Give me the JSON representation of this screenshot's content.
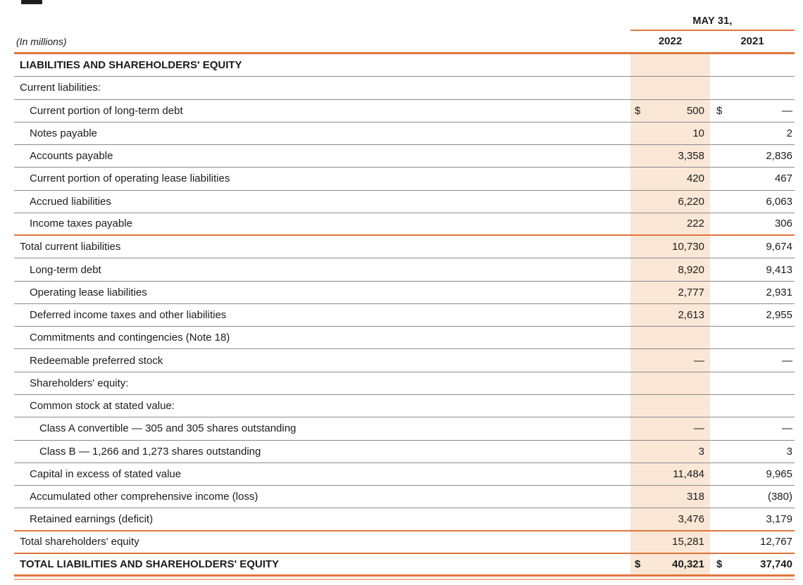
{
  "header": {
    "date_label": "MAY 31,",
    "col_2022": "2022",
    "col_2021": "2021",
    "units_label": "(In millions)"
  },
  "symbols": {
    "dollar": "$",
    "empty_dash": "—"
  },
  "colors": {
    "accent_orange": "#e0763b",
    "accent_orange_light": "#eeb08a",
    "column_highlight": "#fae7d6",
    "row_line_gray": "#8b8b8b",
    "text": "#1c1c1c"
  },
  "rows": [
    {
      "label": "LIABILITIES AND SHAREHOLDERS' EQUITY",
      "indent": 0,
      "bold": true,
      "dollar": false,
      "v2022": "",
      "v2021": "",
      "underline": "gray"
    },
    {
      "label": "Current liabilities:",
      "indent": 0,
      "bold": false,
      "dollar": false,
      "v2022": "",
      "v2021": "",
      "underline": "gray"
    },
    {
      "label": "Current portion of long-term debt",
      "indent": 1,
      "bold": false,
      "dollar": true,
      "v2022": "500",
      "v2021": "—",
      "underline": "gray"
    },
    {
      "label": "Notes payable",
      "indent": 1,
      "bold": false,
      "dollar": false,
      "v2022": "10",
      "v2021": "2",
      "underline": "gray"
    },
    {
      "label": "Accounts payable",
      "indent": 1,
      "bold": false,
      "dollar": false,
      "v2022": "3,358",
      "v2021": "2,836",
      "underline": "gray"
    },
    {
      "label": "Current portion of operating lease liabilities",
      "indent": 1,
      "bold": false,
      "dollar": false,
      "v2022": "420",
      "v2021": "467",
      "underline": "gray"
    },
    {
      "label": "Accrued liabilities",
      "indent": 1,
      "bold": false,
      "dollar": false,
      "v2022": "6,220",
      "v2021": "6,063",
      "underline": "gray"
    },
    {
      "label": "Income taxes payable",
      "indent": 1,
      "bold": false,
      "dollar": false,
      "v2022": "222",
      "v2021": "306",
      "underline": "orange"
    },
    {
      "label": "Total current liabilities",
      "indent": 0,
      "bold": false,
      "dollar": false,
      "v2022": "10,730",
      "v2021": "9,674",
      "underline": "gray"
    },
    {
      "label": "Long-term debt",
      "indent": 1,
      "bold": false,
      "dollar": false,
      "v2022": "8,920",
      "v2021": "9,413",
      "underline": "gray"
    },
    {
      "label": "Operating lease liabilities",
      "indent": 1,
      "bold": false,
      "dollar": false,
      "v2022": "2,777",
      "v2021": "2,931",
      "underline": "gray"
    },
    {
      "label": "Deferred income taxes and other liabilities",
      "indent": 1,
      "bold": false,
      "dollar": false,
      "v2022": "2,613",
      "v2021": "2,955",
      "underline": "gray"
    },
    {
      "label": "Commitments and contingencies (Note 18)",
      "indent": 1,
      "bold": false,
      "dollar": false,
      "v2022": "",
      "v2021": "",
      "underline": "gray"
    },
    {
      "label": "Redeemable preferred stock",
      "indent": 1,
      "bold": false,
      "dollar": false,
      "v2022": "—",
      "v2021": "—",
      "underline": "gray"
    },
    {
      "label": "Shareholders' equity:",
      "indent": 1,
      "bold": false,
      "dollar": false,
      "v2022": "",
      "v2021": "",
      "underline": "gray"
    },
    {
      "label": "Common stock at stated value:",
      "indent": 1,
      "bold": false,
      "dollar": false,
      "v2022": "",
      "v2021": "",
      "underline": "gray"
    },
    {
      "label": "Class A convertible — 305 and 305 shares outstanding",
      "indent": 2,
      "bold": false,
      "dollar": false,
      "v2022": "—",
      "v2021": "—",
      "underline": "gray"
    },
    {
      "label": "Class B — 1,266 and 1,273 shares outstanding",
      "indent": 2,
      "bold": false,
      "dollar": false,
      "v2022": "3",
      "v2021": "3",
      "underline": "gray"
    },
    {
      "label": "Capital in excess of stated value",
      "indent": 1,
      "bold": false,
      "dollar": false,
      "v2022": "11,484",
      "v2021": "9,965",
      "underline": "gray"
    },
    {
      "label": "Accumulated other comprehensive income (loss)",
      "indent": 1,
      "bold": false,
      "dollar": false,
      "v2022": "318",
      "v2021": "(380)",
      "underline": "gray"
    },
    {
      "label": "Retained earnings (deficit)",
      "indent": 1,
      "bold": false,
      "dollar": false,
      "v2022": "3,476",
      "v2021": "3,179",
      "underline": "orange"
    },
    {
      "label": "Total shareholders' equity",
      "indent": 0,
      "bold": false,
      "dollar": false,
      "v2022": "15,281",
      "v2021": "12,767",
      "underline": "orange"
    },
    {
      "label": "TOTAL LIABILITIES AND SHAREHOLDERS' EQUITY",
      "indent": 0,
      "bold": true,
      "dollar": true,
      "v2022": "40,321",
      "v2021": "37,740",
      "underline": "orange-double"
    }
  ]
}
